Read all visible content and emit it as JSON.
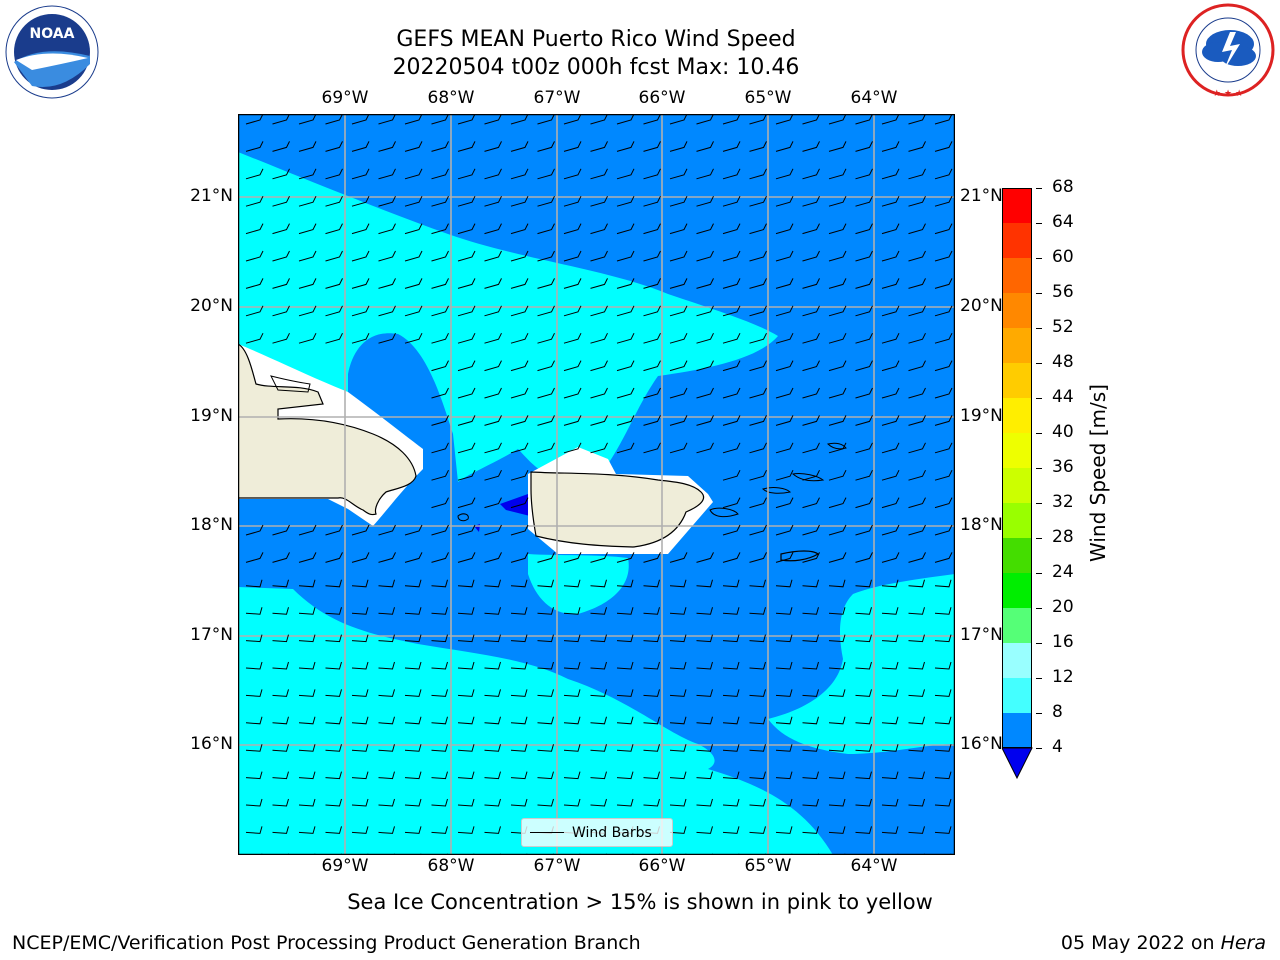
{
  "header": {
    "title_line1": "GEFS MEAN Puerto Rico Wind Speed",
    "title_line2": "20220504 t00z 000h fcst   Max: 10.46"
  },
  "logos": {
    "left": {
      "text": "NOARA",
      "ring_text": "NATIONAL OCEANIC AND ATMOSPHERIC ADMINISTRATION",
      "bottom_text": "U.S. DEPARTMENT OF COMMERCE"
    },
    "right": {
      "ring_text": "NATIONAL WEATHER SERVICE"
    }
  },
  "map": {
    "lon_labels": [
      "69°W",
      "68°W",
      "67°W",
      "66°W",
      "65°W",
      "64°W"
    ],
    "lat_labels": [
      "21°N",
      "20°N",
      "19°N",
      "18°N",
      "17°N",
      "16°N"
    ],
    "legend_label": "Wind Barbs"
  },
  "colorbar": {
    "label": "Wind Speed [m/s]",
    "ticks": [
      "68",
      "64",
      "60",
      "56",
      "52",
      "48",
      "44",
      "40",
      "36",
      "32",
      "28",
      "24",
      "20",
      "16",
      "12",
      "8",
      "4"
    ],
    "colors": [
      "#ff0000",
      "#ff3300",
      "#ff6600",
      "#ff8800",
      "#ffaa00",
      "#ffcc00",
      "#ffee00",
      "#eeff00",
      "#ccff00",
      "#99ff00",
      "#44dd00",
      "#00ee00",
      "#55ff77",
      "#99ffff",
      "#44ffff",
      "#00ffff",
      "#0088ff"
    ],
    "under_color": "#0000ee"
  },
  "captions": {
    "sea_ice": "Sea Ice Concentration > 15% is shown in pink to yellow",
    "branch": "NCEP/EMC/Verification Post Processing Product Generation Branch",
    "date": "05 May 2022 on ",
    "host": "Hera"
  }
}
